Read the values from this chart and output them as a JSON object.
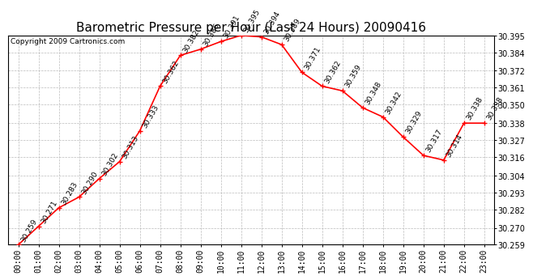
{
  "title": "Barometric Pressure per Hour (Last 24 Hours) 20090416",
  "copyright": "Copyright 2009 Cartronics.com",
  "hours": [
    "00:00",
    "01:00",
    "02:00",
    "03:00",
    "04:00",
    "05:00",
    "06:00",
    "07:00",
    "08:00",
    "09:00",
    "10:00",
    "11:00",
    "12:00",
    "13:00",
    "14:00",
    "15:00",
    "16:00",
    "17:00",
    "18:00",
    "19:00",
    "20:00",
    "21:00",
    "22:00",
    "23:00"
  ],
  "values": [
    30.259,
    30.271,
    30.283,
    30.29,
    30.302,
    30.313,
    30.333,
    30.362,
    30.382,
    30.386,
    30.391,
    30.395,
    30.394,
    30.389,
    30.371,
    30.362,
    30.359,
    30.348,
    30.342,
    30.329,
    30.317,
    30.314,
    30.338,
    30.338
  ],
  "ylim_min": 30.259,
  "ylim_max": 30.395,
  "yticks": [
    30.259,
    30.27,
    30.282,
    30.293,
    30.304,
    30.316,
    30.327,
    30.338,
    30.35,
    30.361,
    30.372,
    30.384,
    30.395
  ],
  "line_color": "#ff0000",
  "marker_color": "#ff0000",
  "grid_color": "#bbbbbb",
  "bg_color": "#ffffff",
  "title_fontsize": 11,
  "label_fontsize": 7,
  "annotation_fontsize": 6.5,
  "copyright_fontsize": 6.5
}
